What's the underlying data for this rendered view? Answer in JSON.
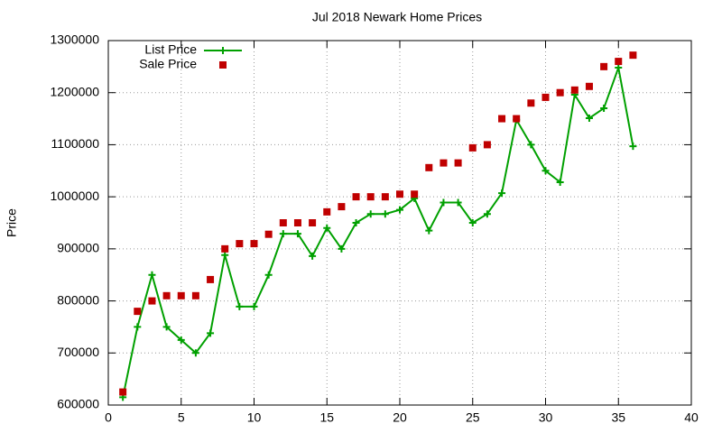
{
  "chart_data": {
    "type": "line",
    "title": "Jul 2018 Newark Home Prices",
    "y_label": "Price",
    "x": [
      1,
      2,
      3,
      4,
      5,
      6,
      7,
      8,
      9,
      10,
      11,
      12,
      13,
      14,
      15,
      16,
      17,
      18,
      19,
      20,
      21,
      22,
      23,
      24,
      25,
      26,
      27,
      28,
      29,
      30,
      31,
      32,
      33,
      34,
      35,
      36
    ],
    "series": [
      {
        "name": "List Price",
        "color": "#00a000",
        "style": "linespoints",
        "values": [
          615000,
          750000,
          850000,
          750000,
          725000,
          700000,
          738000,
          888000,
          789000,
          789000,
          850000,
          929000,
          929000,
          886000,
          940000,
          900000,
          950000,
          967000,
          967000,
          975000,
          997000,
          935000,
          989000,
          989000,
          950000,
          967000,
          1007000,
          1148000,
          1100000,
          1050000,
          1028000,
          1196000,
          1151000,
          1170000,
          1248000,
          1097000
        ]
      },
      {
        "name": "Sale Price",
        "color": "#c00000",
        "style": "points",
        "values": [
          625000,
          780000,
          800000,
          810000,
          810000,
          810000,
          841000,
          900000,
          910000,
          910000,
          928000,
          950000,
          950000,
          950000,
          971000,
          981000,
          1000000,
          1000000,
          1000000,
          1005000,
          1005000,
          1056000,
          1065000,
          1065000,
          1094000,
          1100000,
          1150000,
          1150000,
          1180000,
          1191000,
          1200000,
          1205000,
          1212000,
          1250000,
          1260000,
          1272000
        ]
      }
    ],
    "xlim": [
      0,
      40
    ],
    "xticks": [
      0,
      5,
      10,
      15,
      20,
      25,
      30,
      35,
      40
    ],
    "ylim": [
      600000,
      1300000
    ],
    "yticks": [
      600000,
      700000,
      800000,
      900000,
      1000000,
      1100000,
      1200000,
      1300000
    ],
    "grid": true,
    "legend": "top-left"
  }
}
